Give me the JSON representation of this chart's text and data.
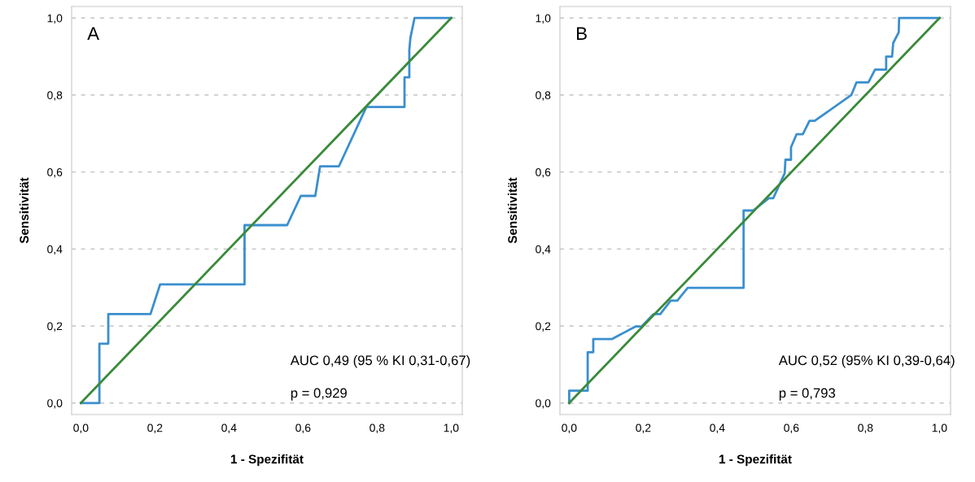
{
  "chart_data": [
    {
      "type": "line",
      "xlabel": "1 - Spezifität",
      "ylabel": "Sensitivität",
      "xlim": [
        -0.025,
        1.03
      ],
      "ylim": [
        -0.03,
        1.03
      ],
      "xticks": [
        {
          "value": 0,
          "label": "0,0"
        },
        {
          "value": 0.2,
          "label": "0,2"
        },
        {
          "value": 0.4,
          "label": "0,4"
        },
        {
          "value": 0.6,
          "label": "0,6"
        },
        {
          "value": 0.8,
          "label": "0,8"
        },
        {
          "value": 1,
          "label": "1,0"
        }
      ],
      "yticks": [
        {
          "value": 0,
          "label": "0,0"
        },
        {
          "value": 0.2,
          "label": "0,2"
        },
        {
          "value": 0.4,
          "label": "0,4"
        },
        {
          "value": 0.6,
          "label": "0,6"
        },
        {
          "value": 0.8,
          "label": "0,8"
        },
        {
          "value": 1,
          "label": "1,0"
        }
      ],
      "grid": "y",
      "annotations": [
        "A",
        "AUC 0,49 (95 % KI 0,31-0,67)",
        "p = 0,929"
      ],
      "series": [
        {
          "color": "#3a8fcf",
          "x": [
            0,
            0.05,
            0.05,
            0.074,
            0.074,
            0.188,
            0.214,
            0.442,
            0.442,
            0.557,
            0.594,
            0.633,
            0.646,
            0.697,
            0.771,
            0.874,
            0.874,
            0.887,
            0.887,
            0.89,
            0.901,
            1
          ],
          "values": [
            0,
            0,
            0.154,
            0.154,
            0.231,
            0.231,
            0.308,
            0.308,
            0.462,
            0.462,
            0.538,
            0.538,
            0.615,
            0.615,
            0.769,
            0.769,
            0.846,
            0.846,
            0.917,
            0.949,
            1,
            1
          ]
        },
        {
          "color": "#3a8a3a",
          "x": [
            0,
            1
          ],
          "values": [
            0,
            1
          ]
        }
      ]
    },
    {
      "type": "line",
      "xlabel": "1 - Spezifität",
      "ylabel": "Sensitivität",
      "xlim": [
        -0.025,
        1.03
      ],
      "ylim": [
        -0.03,
        1.03
      ],
      "xticks": [
        {
          "value": 0,
          "label": "0,0"
        },
        {
          "value": 0.2,
          "label": "0,2"
        },
        {
          "value": 0.4,
          "label": "0,4"
        },
        {
          "value": 0.6,
          "label": "0,6"
        },
        {
          "value": 0.8,
          "label": "0,8"
        },
        {
          "value": 1,
          "label": "1,0"
        }
      ],
      "yticks": [
        {
          "value": 0,
          "label": "0,0"
        },
        {
          "value": 0.2,
          "label": "0,2"
        },
        {
          "value": 0.4,
          "label": "0,4"
        },
        {
          "value": 0.6,
          "label": "0,6"
        },
        {
          "value": 0.8,
          "label": "0,8"
        },
        {
          "value": 1,
          "label": "1,0"
        }
      ],
      "grid": "y",
      "annotations": [
        "B",
        "AUC 0,52 (95% KI 0,39-0,64)",
        "p = 0,793"
      ],
      "series": [
        {
          "color": "#3a8fcf",
          "x": [
            0,
            0,
            0.05,
            0.05,
            0.065,
            0.065,
            0.115,
            0.18,
            0.196,
            0.228,
            0.246,
            0.274,
            0.292,
            0.32,
            0.471,
            0.471,
            0.497,
            0.539,
            0.551,
            0.582,
            0.584,
            0.599,
            0.599,
            0.614,
            0.631,
            0.649,
            0.663,
            0.762,
            0.776,
            0.808,
            0.826,
            0.856,
            0.856,
            0.872,
            0.875,
            0.89,
            0.891,
            1
          ],
          "values": [
            0,
            0.032,
            0.032,
            0.132,
            0.132,
            0.166,
            0.166,
            0.199,
            0.199,
            0.231,
            0.231,
            0.266,
            0.266,
            0.299,
            0.299,
            0.5,
            0.5,
            0.532,
            0.532,
            0.597,
            0.632,
            0.632,
            0.664,
            0.698,
            0.698,
            0.733,
            0.733,
            0.8,
            0.833,
            0.833,
            0.866,
            0.866,
            0.9,
            0.9,
            0.935,
            0.963,
            1,
            1
          ]
        },
        {
          "color": "#3a8a3a",
          "x": [
            0,
            1
          ],
          "values": [
            0,
            1
          ]
        }
      ]
    }
  ]
}
